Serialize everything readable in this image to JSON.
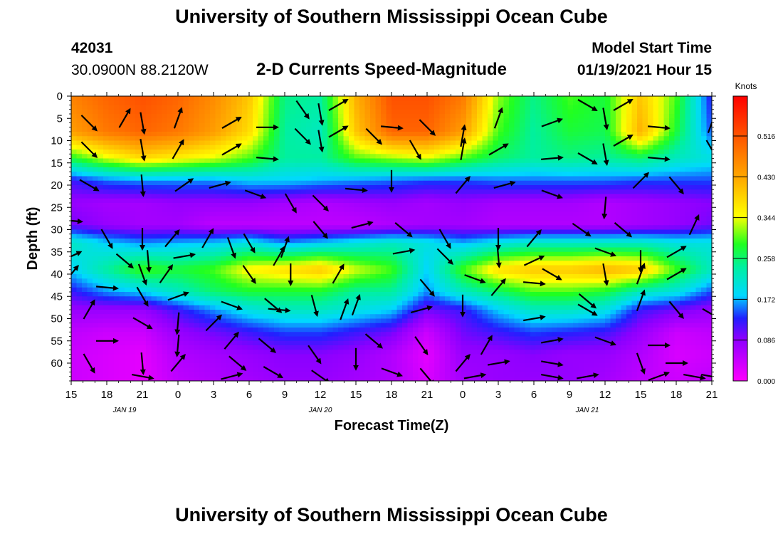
{
  "header": {
    "title": "University of Southern Mississippi Ocean Cube",
    "station_id": "42031",
    "coordinates": "30.0900N 88.2120W",
    "subtitle": "2-D Currents Speed-Magnitude",
    "model_start_label": "Model Start Time",
    "model_start_value": "01/19/2021 Hour 15"
  },
  "footer": {
    "title": "University of Southern Mississippi Ocean Cube"
  },
  "chart_data": {
    "type": "heatmap",
    "xlabel": "Forecast Time(Z)",
    "ylabel": "Depth (ft)",
    "x_ticks": [
      "15",
      "18",
      "21",
      "0",
      "3",
      "6",
      "9",
      "12",
      "15",
      "18",
      "21",
      "0",
      "3",
      "6",
      "9",
      "12",
      "15",
      "18",
      "21"
    ],
    "x_hours": [
      0,
      3,
      6,
      9,
      12,
      15,
      18,
      21,
      24,
      27,
      30,
      33,
      36,
      39,
      42,
      45,
      48,
      51,
      54
    ],
    "date_labels": [
      {
        "label": "JAN 19",
        "hour": 4.5
      },
      {
        "label": "JAN 20",
        "hour": 21
      },
      {
        "label": "JAN 21",
        "hour": 43.5
      }
    ],
    "y_ticks": [
      0,
      5,
      10,
      15,
      20,
      25,
      30,
      35,
      40,
      45,
      50,
      55,
      60
    ],
    "ylim": [
      0,
      64
    ],
    "xlim": [
      0,
      54
    ],
    "colorbar": {
      "label": "Knots",
      "ticks": [
        "0.000",
        "0.086",
        "0.172",
        "0.258",
        "0.344",
        "0.430",
        "0.516"
      ],
      "range": [
        0,
        0.6
      ]
    },
    "layers": [
      {
        "depth": 0,
        "speeds": [
          0.47,
          0.5,
          0.52,
          0.5,
          0.46,
          0.4,
          0.25,
          0.24,
          0.42,
          0.52,
          0.52,
          0.48,
          0.32,
          0.25,
          0.3,
          0.28,
          0.4,
          0.3,
          0.12
        ]
      },
      {
        "depth": 8,
        "speeds": [
          0.44,
          0.48,
          0.5,
          0.48,
          0.44,
          0.38,
          0.24,
          0.22,
          0.4,
          0.5,
          0.5,
          0.44,
          0.3,
          0.24,
          0.28,
          0.27,
          0.42,
          0.28,
          0.14
        ]
      },
      {
        "depth": 14,
        "speeds": [
          0.28,
          0.34,
          0.38,
          0.36,
          0.34,
          0.3,
          0.24,
          0.24,
          0.3,
          0.32,
          0.34,
          0.3,
          0.26,
          0.24,
          0.25,
          0.24,
          0.26,
          0.22,
          0.2
        ]
      },
      {
        "depth": 19,
        "speeds": [
          0.12,
          0.15,
          0.16,
          0.16,
          0.16,
          0.18,
          0.18,
          0.17,
          0.16,
          0.15,
          0.14,
          0.14,
          0.15,
          0.15,
          0.15,
          0.15,
          0.14,
          0.14,
          0.14
        ]
      },
      {
        "depth": 24,
        "speeds": [
          0.08,
          0.07,
          0.07,
          0.08,
          0.08,
          0.08,
          0.07,
          0.06,
          0.07,
          0.08,
          0.07,
          0.08,
          0.07,
          0.07,
          0.07,
          0.06,
          0.07,
          0.08,
          0.09
        ]
      },
      {
        "depth": 29,
        "speeds": [
          0.1,
          0.08,
          0.07,
          0.07,
          0.05,
          0.05,
          0.05,
          0.05,
          0.05,
          0.06,
          0.07,
          0.07,
          0.06,
          0.06,
          0.06,
          0.06,
          0.07,
          0.08,
          0.1
        ]
      },
      {
        "depth": 33,
        "speeds": [
          0.22,
          0.18,
          0.16,
          0.17,
          0.18,
          0.2,
          0.16,
          0.18,
          0.2,
          0.22,
          0.2,
          0.17,
          0.2,
          0.22,
          0.22,
          0.22,
          0.22,
          0.2,
          0.2
        ]
      },
      {
        "depth": 39,
        "speeds": [
          0.18,
          0.24,
          0.3,
          0.28,
          0.3,
          0.36,
          0.38,
          0.4,
          0.34,
          0.3,
          0.18,
          0.3,
          0.38,
          0.4,
          0.4,
          0.42,
          0.4,
          0.3,
          0.22
        ]
      },
      {
        "depth": 44,
        "speeds": [
          0.12,
          0.16,
          0.18,
          0.22,
          0.26,
          0.28,
          0.28,
          0.28,
          0.24,
          0.24,
          0.16,
          0.22,
          0.26,
          0.3,
          0.3,
          0.28,
          0.22,
          0.2,
          0.14
        ]
      },
      {
        "depth": 48,
        "speeds": [
          0.08,
          0.08,
          0.08,
          0.12,
          0.16,
          0.2,
          0.22,
          0.22,
          0.2,
          0.18,
          0.1,
          0.12,
          0.18,
          0.22,
          0.22,
          0.2,
          0.12,
          0.1,
          0.08
        ]
      },
      {
        "depth": 53,
        "speeds": [
          0.05,
          0.04,
          0.04,
          0.08,
          0.1,
          0.12,
          0.14,
          0.14,
          0.12,
          0.1,
          0.04,
          0.1,
          0.12,
          0.14,
          0.13,
          0.12,
          0.08,
          0.04,
          0.05
        ]
      },
      {
        "depth": 58,
        "speeds": [
          0.04,
          0.03,
          0.02,
          0.06,
          0.07,
          0.08,
          0.09,
          0.09,
          0.08,
          0.06,
          0.02,
          0.08,
          0.08,
          0.09,
          0.08,
          0.08,
          0.06,
          0.03,
          0.04
        ]
      },
      {
        "depth": 64,
        "speeds": [
          0.04,
          0.03,
          0.02,
          0.05,
          0.06,
          0.07,
          0.08,
          0.08,
          0.07,
          0.06,
          0.03,
          0.07,
          0.08,
          0.08,
          0.08,
          0.07,
          0.05,
          0.04,
          0.05
        ]
      }
    ],
    "vectors": [
      {
        "hour": 1.5,
        "depth": 6,
        "dir": 135
      },
      {
        "hour": 4.5,
        "depth": 5,
        "dir": 30
      },
      {
        "hour": 6,
        "depth": 6,
        "dir": 170
      },
      {
        "hour": 9,
        "depth": 5,
        "dir": 20
      },
      {
        "hour": 13.5,
        "depth": 6,
        "dir": 60
      },
      {
        "hour": 16.5,
        "depth": 7,
        "dir": 90
      },
      {
        "hour": 19.5,
        "depth": 3,
        "dir": 145
      },
      {
        "hour": 21,
        "depth": 4,
        "dir": 170
      },
      {
        "hour": 22.5,
        "depth": 2,
        "dir": 60
      },
      {
        "hour": 27,
        "depth": 7,
        "dir": 95
      },
      {
        "hour": 30,
        "depth": 7,
        "dir": 135
      },
      {
        "hour": 33,
        "depth": 9,
        "dir": 10
      },
      {
        "hour": 36,
        "depth": 5,
        "dir": 20
      },
      {
        "hour": 40.5,
        "depth": 6,
        "dir": 70
      },
      {
        "hour": 43.5,
        "depth": 2,
        "dir": 120
      },
      {
        "hour": 45,
        "depth": 5,
        "dir": 170
      },
      {
        "hour": 46.5,
        "depth": 2,
        "dir": 60
      },
      {
        "hour": 49.5,
        "depth": 7,
        "dir": 95
      },
      {
        "hour": 54,
        "depth": 6,
        "dir": 20
      },
      {
        "hour": 1.5,
        "depth": 12,
        "dir": 135
      },
      {
        "hour": 6,
        "depth": 12,
        "dir": 170
      },
      {
        "hour": 9,
        "depth": 12,
        "dir": 30
      },
      {
        "hour": 13.5,
        "depth": 12,
        "dir": 60
      },
      {
        "hour": 16.5,
        "depth": 14,
        "dir": 95
      },
      {
        "hour": 19.5,
        "depth": 9,
        "dir": 135
      },
      {
        "hour": 21,
        "depth": 10,
        "dir": 170
      },
      {
        "hour": 22.5,
        "depth": 8,
        "dir": 60
      },
      {
        "hour": 25.5,
        "depth": 9,
        "dir": 135
      },
      {
        "hour": 29,
        "depth": 12,
        "dir": 150
      },
      {
        "hour": 33,
        "depth": 12,
        "dir": 10
      },
      {
        "hour": 36,
        "depth": 12,
        "dir": 60
      },
      {
        "hour": 40.5,
        "depth": 14,
        "dir": 85
      },
      {
        "hour": 43.5,
        "depth": 14,
        "dir": 120
      },
      {
        "hour": 45,
        "depth": 13,
        "dir": 170
      },
      {
        "hour": 46.5,
        "depth": 10,
        "dir": 60
      },
      {
        "hour": 49.5,
        "depth": 14,
        "dir": 95
      },
      {
        "hour": 54,
        "depth": 12,
        "dir": 150
      },
      {
        "hour": 1.5,
        "depth": 20,
        "dir": 120
      },
      {
        "hour": 6,
        "depth": 20,
        "dir": 175
      },
      {
        "hour": 9.5,
        "depth": 20,
        "dir": 55
      },
      {
        "hour": 12.5,
        "depth": 20,
        "dir": 75
      },
      {
        "hour": 15.5,
        "depth": 22,
        "dir": 110
      },
      {
        "hour": 18.5,
        "depth": 24,
        "dir": 150
      },
      {
        "hour": 21,
        "depth": 24,
        "dir": 135
      },
      {
        "hour": 24,
        "depth": 21,
        "dir": 95
      },
      {
        "hour": 27,
        "depth": 19,
        "dir": 180
      },
      {
        "hour": 33,
        "depth": 20,
        "dir": 40
      },
      {
        "hour": 36.5,
        "depth": 20,
        "dir": 75
      },
      {
        "hour": 40.5,
        "depth": 22,
        "dir": 110
      },
      {
        "hour": 45,
        "depth": 25,
        "dir": 185
      },
      {
        "hour": 48,
        "depth": 19,
        "dir": 45
      },
      {
        "hour": 51,
        "depth": 20,
        "dir": 140
      },
      {
        "hour": 0,
        "depth": 28,
        "dir": 95
      },
      {
        "hour": 3,
        "depth": 32,
        "dir": 150
      },
      {
        "hour": 6,
        "depth": 32,
        "dir": 180
      },
      {
        "hour": 8.5,
        "depth": 32,
        "dir": 40
      },
      {
        "hour": 11.5,
        "depth": 32,
        "dir": 30
      },
      {
        "hour": 15,
        "depth": 33,
        "dir": 150
      },
      {
        "hour": 18,
        "depth": 34,
        "dir": 20
      },
      {
        "hour": 21,
        "depth": 30,
        "dir": 140
      },
      {
        "hour": 24.5,
        "depth": 29,
        "dir": 75
      },
      {
        "hour": 28,
        "depth": 30,
        "dir": 130
      },
      {
        "hour": 31.5,
        "depth": 32,
        "dir": 150
      },
      {
        "hour": 36,
        "depth": 32,
        "dir": 180
      },
      {
        "hour": 39,
        "depth": 32,
        "dir": 40
      },
      {
        "hour": 43,
        "depth": 30,
        "dir": 125
      },
      {
        "hour": 46.5,
        "depth": 30,
        "dir": 130
      },
      {
        "hour": 52.5,
        "depth": 29,
        "dir": 25
      },
      {
        "hour": 0,
        "depth": 36,
        "dir": 65
      },
      {
        "hour": 4.5,
        "depth": 37,
        "dir": 130
      },
      {
        "hour": 6.5,
        "depth": 37,
        "dir": 175
      },
      {
        "hour": 9.5,
        "depth": 36,
        "dir": 80
      },
      {
        "hour": 13.5,
        "depth": 34,
        "dir": 160
      },
      {
        "hour": 17.5,
        "depth": 36,
        "dir": 30
      },
      {
        "hour": 28,
        "depth": 35,
        "dir": 80
      },
      {
        "hour": 31.5,
        "depth": 36,
        "dir": 135
      },
      {
        "hour": 36,
        "depth": 36,
        "dir": 175
      },
      {
        "hour": 39,
        "depth": 37,
        "dir": 65
      },
      {
        "hour": 45,
        "depth": 35,
        "dir": 110
      },
      {
        "hour": 48,
        "depth": 37,
        "dir": 180
      },
      {
        "hour": 51,
        "depth": 35,
        "dir": 60
      },
      {
        "hour": 0,
        "depth": 40,
        "dir": 40
      },
      {
        "hour": 6,
        "depth": 40,
        "dir": 160
      },
      {
        "hour": 8,
        "depth": 40,
        "dir": 35
      },
      {
        "hour": 9,
        "depth": 45,
        "dir": 70
      },
      {
        "hour": 15,
        "depth": 40,
        "dir": 145
      },
      {
        "hour": 18.5,
        "depth": 40,
        "dir": 180
      },
      {
        "hour": 22.5,
        "depth": 40,
        "dir": 30
      },
      {
        "hour": 34,
        "depth": 41,
        "dir": 110
      },
      {
        "hour": 40.5,
        "depth": 40,
        "dir": 120
      },
      {
        "hour": 45,
        "depth": 40,
        "dir": 170
      },
      {
        "hour": 48,
        "depth": 40,
        "dir": 20
      },
      {
        "hour": 51,
        "depth": 40,
        "dir": 60
      },
      {
        "hour": 3,
        "depth": 43,
        "dir": 95
      },
      {
        "hour": 6,
        "depth": 45,
        "dir": 150
      },
      {
        "hour": 13.5,
        "depth": 47,
        "dir": 110
      },
      {
        "hour": 17,
        "depth": 47,
        "dir": 130
      },
      {
        "hour": 20.5,
        "depth": 47,
        "dir": 165
      },
      {
        "hour": 24,
        "depth": 47,
        "dir": 20
      },
      {
        "hour": 30,
        "depth": 43,
        "dir": 140
      },
      {
        "hour": 33,
        "depth": 47,
        "dir": 180
      },
      {
        "hour": 36,
        "depth": 43,
        "dir": 40
      },
      {
        "hour": 39,
        "depth": 42,
        "dir": 95
      },
      {
        "hour": 43.5,
        "depth": 46,
        "dir": 130
      },
      {
        "hour": 48,
        "depth": 46,
        "dir": 20
      },
      {
        "hour": 1.5,
        "depth": 48,
        "dir": 30
      },
      {
        "hour": 6,
        "depth": 51,
        "dir": 120
      },
      {
        "hour": 9,
        "depth": 51,
        "dir": 185
      },
      {
        "hour": 12,
        "depth": 51,
        "dir": 45
      },
      {
        "hour": 17.5,
        "depth": 48,
        "dir": 95
      },
      {
        "hour": 23,
        "depth": 48,
        "dir": 20
      },
      {
        "hour": 29.5,
        "depth": 48,
        "dir": 75
      },
      {
        "hour": 39,
        "depth": 50,
        "dir": 80
      },
      {
        "hour": 43.5,
        "depth": 48,
        "dir": 120
      },
      {
        "hour": 51,
        "depth": 48,
        "dir": 140
      },
      {
        "hour": 54,
        "depth": 49,
        "dir": 120
      },
      {
        "hour": 3,
        "depth": 55,
        "dir": 90
      },
      {
        "hour": 9,
        "depth": 56,
        "dir": 185
      },
      {
        "hour": 13.5,
        "depth": 55,
        "dir": 40
      },
      {
        "hour": 16.5,
        "depth": 56,
        "dir": 130
      },
      {
        "hour": 25.5,
        "depth": 55,
        "dir": 130
      },
      {
        "hour": 29.5,
        "depth": 56,
        "dir": 145
      },
      {
        "hour": 35,
        "depth": 56,
        "dir": 30
      },
      {
        "hour": 40.5,
        "depth": 55,
        "dir": 80
      },
      {
        "hour": 45,
        "depth": 55,
        "dir": 110
      },
      {
        "hour": 49.5,
        "depth": 56,
        "dir": 90
      },
      {
        "hour": 1.5,
        "depth": 60,
        "dir": 150
      },
      {
        "hour": 6,
        "depth": 60,
        "dir": 175
      },
      {
        "hour": 9,
        "depth": 60,
        "dir": 40
      },
      {
        "hour": 14,
        "depth": 60,
        "dir": 130
      },
      {
        "hour": 20.5,
        "depth": 58,
        "dir": 145
      },
      {
        "hour": 24,
        "depth": 59,
        "dir": 180
      },
      {
        "hour": 33,
        "depth": 60,
        "dir": 40
      },
      {
        "hour": 36,
        "depth": 60,
        "dir": 80
      },
      {
        "hour": 40.5,
        "depth": 60,
        "dir": 100
      },
      {
        "hour": 48,
        "depth": 60,
        "dir": 160
      },
      {
        "hour": 51,
        "depth": 60,
        "dir": 90
      },
      {
        "hour": 6,
        "depth": 63,
        "dir": 100
      },
      {
        "hour": 13.5,
        "depth": 63,
        "dir": 75
      },
      {
        "hour": 17,
        "depth": 62,
        "dir": 120
      },
      {
        "hour": 21,
        "depth": 63,
        "dir": 125
      },
      {
        "hour": 27,
        "depth": 62,
        "dir": 110
      },
      {
        "hour": 30,
        "depth": 63,
        "dir": 140
      },
      {
        "hour": 34,
        "depth": 63,
        "dir": 80
      },
      {
        "hour": 40.5,
        "depth": 63,
        "dir": 100
      },
      {
        "hour": 43.5,
        "depth": 63,
        "dir": 80
      },
      {
        "hour": 49.5,
        "depth": 63,
        "dir": 70
      },
      {
        "hour": 52.5,
        "depth": 63,
        "dir": 100
      },
      {
        "hour": 54,
        "depth": 63,
        "dir": 100
      }
    ]
  }
}
